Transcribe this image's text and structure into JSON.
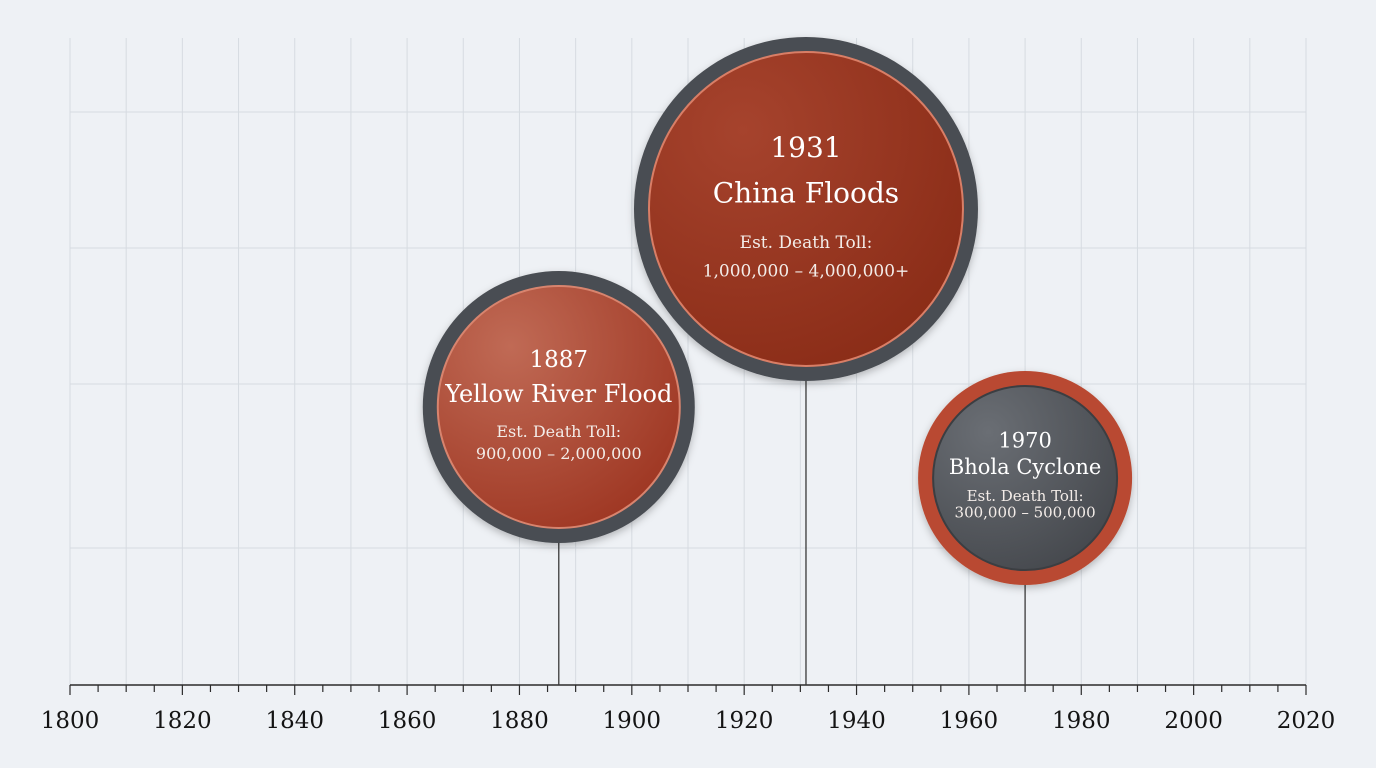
{
  "chart_data": {
    "type": "timeline",
    "xlim": [
      1800,
      2020
    ],
    "x_ticks": [
      1800,
      1820,
      1840,
      1860,
      1880,
      1900,
      1920,
      1940,
      1960,
      1980,
      2000,
      2020
    ],
    "grid": true,
    "events": [
      {
        "year": 1887,
        "year_label": "1887",
        "name": "Yellow River Flood",
        "toll_label": "Est. Death Toll:",
        "toll_range": "900,000 – 2,000,000",
        "min_deaths": 900000,
        "max_deaths": 2000000,
        "fill_color": "#b24a34",
        "ring_color": "#4a4d52"
      },
      {
        "year": 1931,
        "year_label": "1931",
        "name": "China Floods",
        "toll_label": "Est. Death Toll:",
        "toll_range": "1,000,000 – 4,000,000+",
        "min_deaths": 1000000,
        "max_deaths": 4000000,
        "fill_color": "#9a3420",
        "ring_color": "#4a4d52"
      },
      {
        "year": 1970,
        "year_label": "1970",
        "name": "Bhola Cyclone",
        "toll_label": "Est. Death Toll:",
        "toll_range": "300,000 – 500,000",
        "min_deaths": 300000,
        "max_deaths": 500000,
        "fill_color": "#54585e",
        "ring_color": "#b94a30"
      }
    ]
  }
}
